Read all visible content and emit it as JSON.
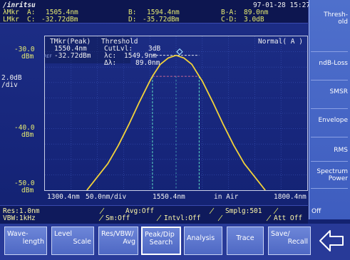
{
  "brand": "/inritsu",
  "datetime": "97-01-28 15:27",
  "markers": {
    "row1": {
      "label": "λMkr",
      "a_key": "A:",
      "a_val": "1505.4nm",
      "b_key": "B:",
      "b_val": "1594.4nm",
      "ba_key": "B-A:",
      "ba_val": "89.0nm"
    },
    "row2": {
      "label": "LMkr",
      "c_key": "C:",
      "c_val": "-32.72dBm",
      "d_key": "D:",
      "d_val": "-35.72dBm",
      "cd_key": "C-D:",
      "cd_val": "3.0dB"
    }
  },
  "peak_info": {
    "title": "TMkr(Peak)",
    "wavelength": "1550.4nm",
    "ref_tag": "REF",
    "level": "-32.72dBm",
    "threshold_title": "Threshold",
    "cutlvl_label": "CutLvl:",
    "cutlvl_val": "3dB",
    "lc_label": "λc:",
    "lc_val": "1549.9nm",
    "dl_label": "Δλ:",
    "dl_val": "89.0nm"
  },
  "mode": "Normal( A )",
  "y_axis": {
    "top_level": "-30.0",
    "top_unit": "dBm",
    "scale": "2.0dB",
    "scale_unit": "/div",
    "mid_level": "-40.0",
    "mid_unit": "dBm",
    "bottom_level": "-50.0",
    "bottom_unit": "dBm"
  },
  "x_axis": {
    "start": "1300.4nm",
    "span": "50.0nm/div",
    "center": "1550.4nm",
    "medium": "in Air",
    "stop": "1800.4nm"
  },
  "status": {
    "res": "Res:1.0nm",
    "avg": "Avg:Off",
    "smplg": "Smplg:501",
    "vbw": "VBW:1kHz",
    "sm": "Sm:Off",
    "intvl": "Intvl:Off",
    "att": "Att Off"
  },
  "softkeys": [
    "Thresh-\nold",
    "ndB-Loss",
    "SMSR",
    "Envelope",
    "RMS",
    "Spectrum\nPower",
    "Off"
  ],
  "function_keys": [
    {
      "l1": "Wave-",
      "l2": "length"
    },
    {
      "l1": "Level",
      "l2": "Scale"
    },
    {
      "l1": "Res/VBW/",
      "l2": "Avg"
    },
    {
      "l1": "Peak/Dip",
      "l2": "Search"
    },
    {
      "l1": "Analysis",
      "l2": ""
    },
    {
      "l1": "Trace",
      "l2": ""
    },
    {
      "l1": "Save/",
      "l2": "Recall"
    }
  ],
  "colors": {
    "text_yellow": "#e8ec72",
    "trace": "#f2d23a",
    "marker_line": "#5fe0c8",
    "softkey_bg": "#4f70cc",
    "screen_bg": "#1d2e86"
  },
  "chart_data": {
    "type": "line",
    "xlim": [
      1300.4,
      1800.4
    ],
    "ylim": [
      -52,
      -30
    ],
    "x": [
      1380.4,
      1420.4,
      1440.4,
      1460.4,
      1480.4,
      1500.4,
      1505.4,
      1520.4,
      1535.4,
      1550.4,
      1565.4,
      1580.4,
      1594.4,
      1600.4,
      1620.4,
      1640.4,
      1660.4,
      1680.4,
      1720.4
    ],
    "y": [
      -52.0,
      -48.2,
      -45.6,
      -42.6,
      -39.4,
      -36.4,
      -35.7,
      -34.0,
      -33.1,
      -32.72,
      -33.1,
      -34.0,
      -35.7,
      -36.4,
      -39.4,
      -42.6,
      -45.6,
      -48.2,
      -52.0
    ],
    "xlabel": "",
    "ylabel": "",
    "grid": true,
    "markers_x": [
      1505.4,
      1594.4
    ],
    "threshold_level": -35.72
  }
}
